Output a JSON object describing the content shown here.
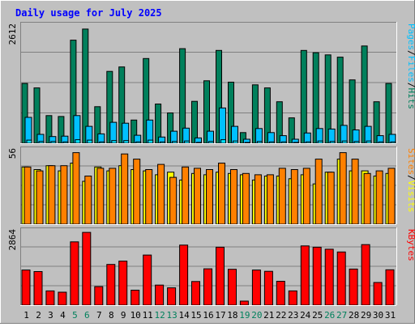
{
  "colors": {
    "frame_bg": "#C0C0C0",
    "panel_bg": "#C0C0C0",
    "grid": "#808080",
    "title": "#0000FF",
    "hits": "#00805C",
    "files": "#00C0FF",
    "pages": "#00E0FF",
    "sites": "#FF8000",
    "visits": "#FFFF00",
    "kbytes": "#FF0000",
    "day_normal": "#000000",
    "day_weekend": "#00805C"
  },
  "chart_data": {
    "type": "bar",
    "title": "Daily usage for July 2025",
    "x": [
      "1",
      "2",
      "3",
      "4",
      "5",
      "6",
      "7",
      "8",
      "9",
      "10",
      "11",
      "12",
      "13",
      "14",
      "15",
      "16",
      "17",
      "18",
      "19",
      "20",
      "21",
      "22",
      "23",
      "24",
      "25",
      "26",
      "27",
      "28",
      "29",
      "30",
      "31"
    ],
    "weekend_days": [
      "5",
      "6",
      "12",
      "13",
      "19",
      "20",
      "26",
      "27"
    ],
    "panels": [
      {
        "id": "hits",
        "max_label": "2612",
        "ymax": 2612,
        "legend": [
          {
            "text": "Pages",
            "color": "#00C0FF"
          },
          {
            "text": "/",
            "color": "#000000"
          },
          {
            "text": "Files",
            "color": "#00C0FF"
          },
          {
            "text": "/",
            "color": "#000000"
          },
          {
            "text": "Hits",
            "color": "#00805C"
          }
        ],
        "series": [
          {
            "name": "Hits",
            "color": "#00805C",
            "values": [
              1340,
              1240,
              620,
              600,
              2310,
              2560,
              820,
              1610,
              1710,
              520,
              1900,
              880,
              680,
              2120,
              940,
              1400,
              2080,
              1370,
              240,
              1310,
              1240,
              930,
              570,
              2080,
              2030,
              1980,
              1930,
              1420,
              2180,
              930,
              1340
            ]
          },
          {
            "name": "Files",
            "color": "#00C0FF",
            "values": [
              580,
              200,
              150,
              160,
              620,
              380,
              210,
              470,
              450,
              180,
              520,
              140,
              270,
              340,
              120,
              270,
              790,
              380,
              90,
              330,
              240,
              170,
              90,
              230,
              330,
              320,
              400,
              300,
              380,
              170,
              200
            ]
          },
          {
            "name": "Pages",
            "color": "#00E0FF",
            "values": [
              70,
              40,
              40,
              30,
              80,
              70,
              30,
              60,
              60,
              30,
              70,
              30,
              40,
              50,
              20,
              40,
              80,
              50,
              10,
              40,
              30,
              30,
              20,
              30,
              50,
              40,
              50,
              40,
              50,
              30,
              30
            ]
          }
        ]
      },
      {
        "id": "visits",
        "max_label": "56",
        "ymax": 56,
        "legend": [
          {
            "text": "Sites",
            "color": "#FF8000"
          },
          {
            "text": "/",
            "color": "#000000"
          },
          {
            "text": "Visits",
            "color": "#FFFF00"
          }
        ],
        "series": [
          {
            "name": "Visits",
            "color": "#FFFF00",
            "values": [
              44,
              42,
              45,
              41,
              47,
              33,
              44,
              41,
              45,
              42,
              41,
              38,
              40,
              34,
              39,
              38,
              40,
              39,
              38,
              34,
              37,
              37,
              35,
              38,
              31,
              40,
              50,
              41,
              41,
              37,
              39
            ]
          },
          {
            "name": "Sites",
            "color": "#FF8000",
            "values": [
              44,
              41,
              45,
              45,
              55,
              37,
              43,
              43,
              54,
              50,
              42,
              46,
              36,
              44,
              43,
              42,
              47,
              42,
              39,
              38,
              38,
              43,
              42,
              43,
              50,
              40,
              55,
              50,
              39,
              41,
              43
            ]
          }
        ]
      },
      {
        "id": "kbytes",
        "max_label": "2864",
        "ymax": 2864,
        "legend": [
          {
            "text": "KBytes",
            "color": "#FF0000"
          }
        ],
        "series": [
          {
            "name": "KBytes",
            "color": "#FF0000",
            "values": [
              1380,
              1320,
              560,
              510,
              2490,
              2860,
              730,
              1600,
              1730,
              590,
              1970,
              790,
              680,
              2360,
              930,
              1430,
              2280,
              1410,
              160,
              1380,
              1330,
              940,
              560,
              2330,
              2280,
              2200,
              2090,
              1420,
              2380,
              890,
              1390
            ]
          }
        ]
      }
    ]
  }
}
